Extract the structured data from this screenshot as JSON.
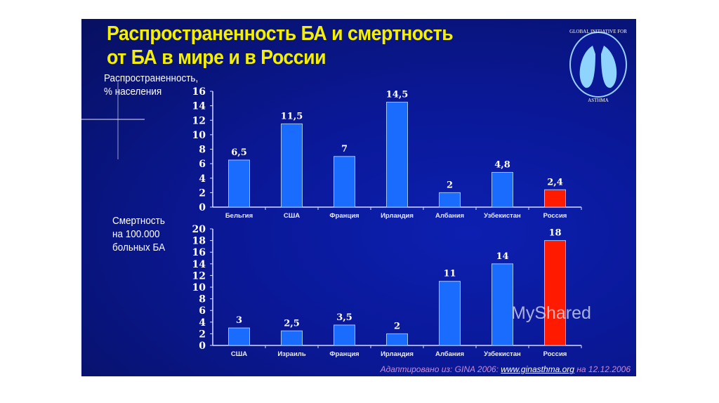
{
  "slide": {
    "title_line1": "Распространенность БА и смертность",
    "title_line2": "от БА в мире и в России",
    "logo_text_top": "GLOBAL INITIATIVE FOR",
    "logo_text_bottom": "ASTHMA",
    "source_prefix": "Адаптировано из: GINA 2006: ",
    "source_link": "www.ginasthma.org",
    "source_suffix": " на 12.12.2006",
    "watermark": "MyShared"
  },
  "colors": {
    "bar": "#1a6cff",
    "highlight": "#ff1a00",
    "title": "#f5f000",
    "background": "#0a1896"
  },
  "chart_data": [
    {
      "type": "bar",
      "title": "",
      "ylabel_line1": "Распространенность,",
      "ylabel_line2": "% населения",
      "xlabel": "",
      "categories": [
        "Бельгия",
        "США",
        "Франция",
        "Ирландия",
        "Албания",
        "Узбекистан",
        "Россия"
      ],
      "values": [
        6.5,
        11.5,
        7,
        14.5,
        2,
        4.8,
        2.4
      ],
      "value_labels": [
        "6,5",
        "11,5",
        "7",
        "14,5",
        "2",
        "4,8",
        "2,4"
      ],
      "highlight": "Россия",
      "ylim": [
        0,
        16
      ],
      "yticks": [
        0,
        2,
        4,
        6,
        8,
        10,
        12,
        14,
        16
      ],
      "grid": false
    },
    {
      "type": "bar",
      "title": "",
      "ylabel_line1": "Смертность",
      "ylabel_line2": "на 100.000",
      "ylabel_line3": "больных БА",
      "xlabel": "",
      "categories": [
        "США",
        "Израиль",
        "Франция",
        "Ирландия",
        "Албания",
        "Узбекистан",
        "Россия"
      ],
      "values": [
        3,
        2.5,
        3.5,
        2,
        11,
        14,
        18
      ],
      "value_labels": [
        "3",
        "2,5",
        "3,5",
        "2",
        "11",
        "14",
        "18"
      ],
      "highlight": "Россия",
      "ylim": [
        0,
        20
      ],
      "yticks": [
        0,
        2,
        4,
        6,
        8,
        10,
        12,
        14,
        16,
        18,
        20
      ],
      "grid": false
    }
  ]
}
